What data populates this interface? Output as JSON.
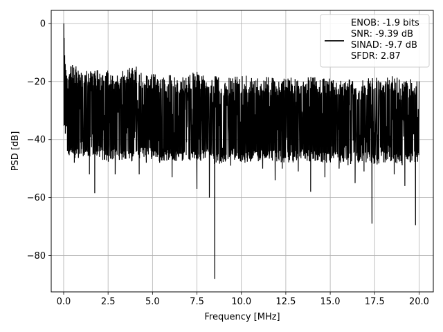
{
  "chart_data": {
    "type": "line",
    "xlabel": "Frequency [MHz]",
    "ylabel": "PSD [dB]",
    "xlim": [
      -0.7,
      20.8
    ],
    "ylim": [
      -92.5,
      4.5
    ],
    "x_ticks": [
      0.0,
      2.5,
      5.0,
      7.5,
      10.0,
      12.5,
      15.0,
      17.5,
      20.0
    ],
    "x_tick_labels": [
      "0.0",
      "2.5",
      "5.0",
      "7.5",
      "10.0",
      "12.5",
      "15.0",
      "17.5",
      "20.0"
    ],
    "y_ticks": [
      0,
      -20,
      -40,
      -60,
      -80
    ],
    "y_tick_labels": [
      "0",
      "−20",
      "−40",
      "−60",
      "−80"
    ],
    "grid": true,
    "line_color": "#000000",
    "legend": {
      "placement": "top-right",
      "entries": [
        "ENOB: -1.9 bits",
        "SNR: -9.39 dB",
        "SINAD: -9.7 dB",
        "SFDR: 2.87"
      ]
    },
    "series": [
      {
        "x": [
          0.0,
          0.02,
          0.05,
          0.1,
          0.15,
          0.2,
          0.3,
          0.4,
          0.5,
          0.75,
          1.0,
          1.25,
          1.5,
          1.75,
          2.0,
          2.5,
          3.0,
          3.5,
          4.0,
          4.5,
          5.0,
          5.5,
          6.0,
          6.5,
          7.0,
          7.5,
          8.0,
          8.5,
          9.0,
          9.5,
          10.0,
          10.5,
          11.0,
          11.5,
          12.0,
          12.5,
          13.0,
          13.5,
          14.0,
          14.5,
          15.0,
          15.5,
          16.0,
          16.5,
          17.0,
          17.35,
          17.5,
          18.0,
          18.5,
          19.0,
          19.5,
          19.8,
          20.0
        ],
        "y": [
          0,
          -10,
          -15,
          -22,
          -30,
          -28,
          -32,
          -35,
          -30,
          -32,
          -31,
          -33,
          -30,
          -31,
          -32,
          -31,
          -33,
          -32,
          -31,
          -32,
          -33,
          -32,
          -31,
          -33,
          -32,
          -33,
          -33,
          -34,
          -33,
          -32,
          -33,
          -33,
          -32,
          -33,
          -32,
          -33,
          -33,
          -34,
          -33,
          -33,
          -32,
          -33,
          -33,
          -34,
          -33,
          -34,
          -33,
          -33,
          -32,
          -33,
          -33,
          -34,
          -33
        ]
      }
    ],
    "envelope": {
      "x": [
        0.2,
        0.5,
        1.0,
        1.5,
        2.0,
        2.5,
        3.0,
        3.5,
        4.0,
        4.5,
        5.0,
        5.5,
        6.0,
        6.5,
        7.0,
        7.5,
        8.0,
        8.5,
        9.0,
        9.5,
        10.0,
        10.5,
        11.0,
        11.5,
        12.0,
        12.5,
        13.0,
        13.5,
        14.0,
        14.5,
        15.0,
        15.5,
        16.0,
        16.5,
        17.0,
        17.5,
        18.0,
        18.5,
        19.0,
        19.5,
        20.0
      ],
      "top": [
        -17,
        -17,
        -19,
        -19,
        -19,
        -19,
        -20,
        -19,
        -17,
        -20,
        -20,
        -21,
        -20,
        -21,
        -21,
        -19,
        -21,
        -21,
        -22,
        -21,
        -21,
        -21,
        -22,
        -21,
        -22,
        -21,
        -22,
        -22,
        -21,
        -22,
        -21,
        -22,
        -22,
        -22,
        -22,
        -21,
        -22,
        -21,
        -22,
        -22,
        -22
      ],
      "bottom": [
        -43,
        -45,
        -44,
        -45,
        -44,
        -46,
        -45,
        -45,
        -46,
        -44,
        -45,
        -46,
        -45,
        -46,
        -45,
        -46,
        -45,
        -47,
        -46,
        -45,
        -46,
        -46,
        -46,
        -45,
        -46,
        -46,
        -46,
        -45,
        -46,
        -46,
        -46,
        -46,
        -47,
        -46,
        -46,
        -47,
        -46,
        -46,
        -47,
        -46,
        -46
      ]
    },
    "dips": [
      {
        "x": 0.6,
        "y": -48
      },
      {
        "x": 1.45,
        "y": -52
      },
      {
        "x": 1.75,
        "y": -58.5
      },
      {
        "x": 2.2,
        "y": -47
      },
      {
        "x": 2.9,
        "y": -52
      },
      {
        "x": 3.45,
        "y": -46
      },
      {
        "x": 4.25,
        "y": -52
      },
      {
        "x": 4.65,
        "y": -48
      },
      {
        "x": 5.4,
        "y": -48
      },
      {
        "x": 6.1,
        "y": -53
      },
      {
        "x": 7.5,
        "y": -57
      },
      {
        "x": 8.2,
        "y": -60
      },
      {
        "x": 8.5,
        "y": -88
      },
      {
        "x": 9.4,
        "y": -49
      },
      {
        "x": 10.2,
        "y": -48
      },
      {
        "x": 11.2,
        "y": -50
      },
      {
        "x": 11.9,
        "y": -54
      },
      {
        "x": 12.3,
        "y": -50
      },
      {
        "x": 13.2,
        "y": -51
      },
      {
        "x": 13.9,
        "y": -58
      },
      {
        "x": 14.7,
        "y": -53
      },
      {
        "x": 15.5,
        "y": -50
      },
      {
        "x": 16.4,
        "y": -55
      },
      {
        "x": 16.9,
        "y": -51
      },
      {
        "x": 17.35,
        "y": -69
      },
      {
        "x": 18.6,
        "y": -52
      },
      {
        "x": 19.2,
        "y": -56
      },
      {
        "x": 19.8,
        "y": -69.5
      }
    ],
    "spikes": [
      {
        "x": 0.01,
        "y": 0
      },
      {
        "x": 0.03,
        "y": -5
      },
      {
        "x": 0.06,
        "y": -11
      },
      {
        "x": 0.09,
        "y": -14
      },
      {
        "x": 0.12,
        "y": -16
      },
      {
        "x": 0.17,
        "y": -18
      }
    ]
  }
}
